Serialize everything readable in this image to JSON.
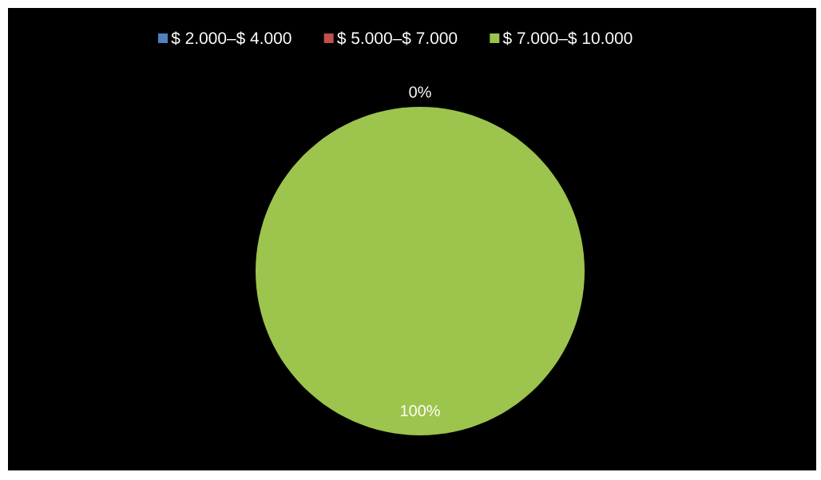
{
  "chart_data": {
    "type": "pie",
    "categories": [
      "$ 2.000–$ 4.000",
      "$ 5.000–$ 7.000",
      "$ 7.000–$ 10.000"
    ],
    "values": [
      0,
      0,
      100
    ],
    "colors": [
      "#4f81bd",
      "#c0504d",
      "#9dc44c"
    ],
    "value_labels": [
      null,
      "0%",
      "100%"
    ],
    "legend": "top"
  }
}
